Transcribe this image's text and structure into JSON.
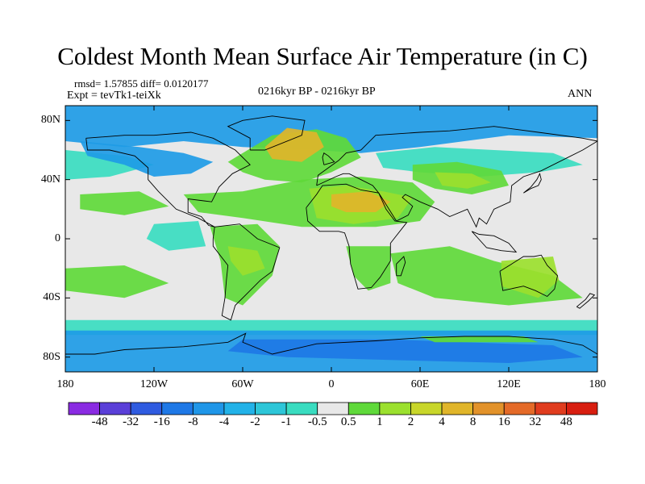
{
  "title": "Coldest Month Mean Surface Air Temperature (in C)",
  "stats": "rmsd= 1.57855 diff= 0.0120177",
  "experiment": "Expt = tevTk1-teiXk",
  "period": "0216kyr BP - 0216kyr BP",
  "season": "ANN",
  "lat_labels": [
    "80N",
    "40N",
    "0",
    "40S",
    "80S"
  ],
  "lat_values": [
    80,
    40,
    0,
    -40,
    -80
  ],
  "lon_labels": [
    "180",
    "120W",
    "60W",
    "0",
    "60E",
    "120E",
    "180"
  ],
  "lon_values": [
    -180,
    -120,
    -60,
    0,
    60,
    120,
    180
  ],
  "lat_range": [
    -90,
    90
  ],
  "lon_range": [
    -180,
    180
  ],
  "legend": {
    "labels": [
      "-48",
      "-32",
      "-16",
      "-8",
      "-4",
      "-2",
      "-1",
      "-0.5",
      "0.5",
      "1",
      "2",
      "4",
      "8",
      "16",
      "32",
      "48"
    ],
    "colors": [
      "#8a2be2",
      "#5a3fd8",
      "#2f5be0",
      "#1e78e6",
      "#1f96e8",
      "#22b2e8",
      "#2dc6d8",
      "#39dcc0",
      "#e8e8e8",
      "#5fd93a",
      "#9be02e",
      "#c8d62a",
      "#e0b52a",
      "#e2922a",
      "#e46a28",
      "#e03c1e",
      "#d81e10"
    ]
  },
  "colors": {
    "ocean_blue": "#1e9be6",
    "deep_blue": "#1e78e6",
    "cyan": "#39dcc0",
    "neutral": "#e8e8e8",
    "green": "#5fd93a",
    "yellowgreen": "#9be02e",
    "orange": "#e0b52a"
  }
}
